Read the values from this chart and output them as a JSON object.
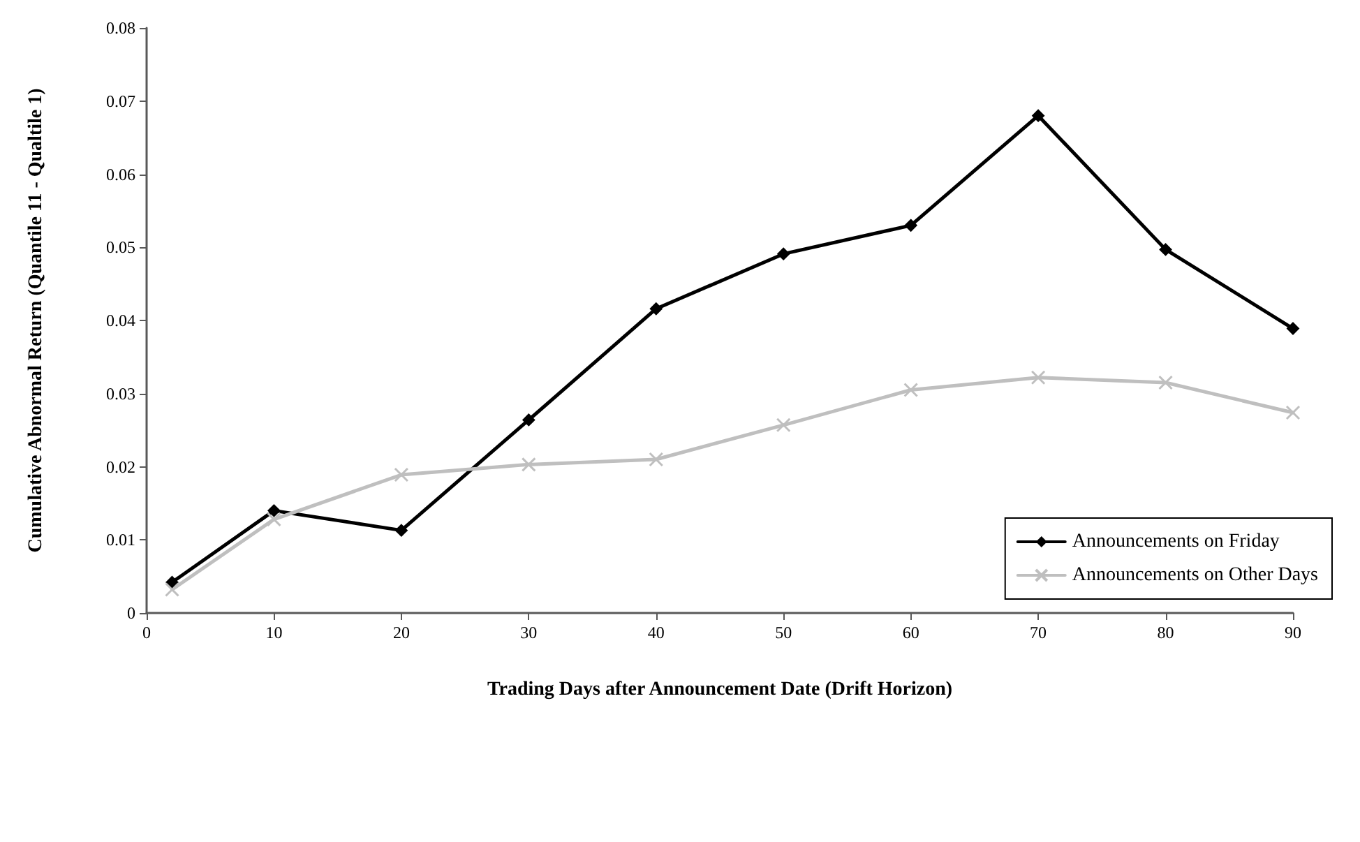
{
  "chart_data": {
    "type": "line",
    "xlabel": "Trading Days after Announcement Date (Drift Horizon)",
    "ylabel": "Cumulative Abnormal Return (Quantile 11 - Qualtile 1)",
    "x": [
      2,
      10,
      20,
      30,
      40,
      50,
      60,
      70,
      80,
      90
    ],
    "series": [
      {
        "name": "Announcements on Friday",
        "color": "#000000",
        "marker": "diamond",
        "values": [
          0.0042,
          0.014,
          0.0113,
          0.0264,
          0.0416,
          0.0491,
          0.053,
          0.068,
          0.0497,
          0.0389
        ]
      },
      {
        "name": "Announcements on Other Days",
        "color": "#bfbfbf",
        "marker": "cross",
        "values": [
          0.0032,
          0.0128,
          0.0189,
          0.0203,
          0.021,
          0.0257,
          0.0305,
          0.0322,
          0.0315,
          0.0274
        ]
      }
    ],
    "xlim": [
      0,
      90
    ],
    "xticks": [
      0,
      10,
      20,
      30,
      40,
      50,
      60,
      70,
      80,
      90
    ],
    "ylim": [
      0,
      0.08
    ],
    "yticks": [
      0,
      0.01,
      0.02,
      0.03,
      0.04,
      0.05,
      0.06,
      0.07,
      0.08
    ],
    "grid": false,
    "legend": "bottom right",
    "line_style": "solid"
  }
}
